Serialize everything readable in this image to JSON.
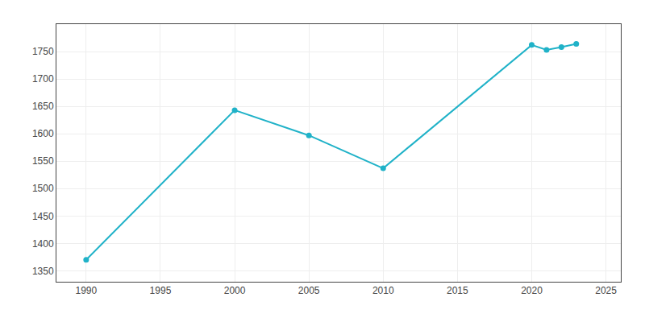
{
  "chart_data": {
    "type": "line",
    "x": [
      1990,
      2000,
      2005,
      2010,
      2020,
      2021,
      2022,
      2023
    ],
    "values": [
      1370,
      1643,
      1597,
      1537,
      1762,
      1753,
      1758,
      1764
    ],
    "color": "#20B2C8",
    "marker": "circle",
    "xlim": [
      1988,
      2026
    ],
    "ylim": [
      1330,
      1800
    ],
    "xticks": [
      1990,
      1995,
      2000,
      2005,
      2010,
      2015,
      2020,
      2025
    ],
    "yticks": [
      1350,
      1400,
      1450,
      1500,
      1550,
      1600,
      1650,
      1700,
      1750
    ],
    "grid": true
  }
}
